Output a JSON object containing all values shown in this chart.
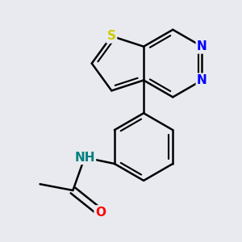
{
  "bg_color": "#e8eaf0",
  "bond_color": "#000000",
  "bond_width": 1.8,
  "atom_colors": {
    "N": "#0000ff",
    "S": "#cccc00",
    "O": "#ff0000",
    "NH": "#008080",
    "C": "#000000"
  },
  "font_size": 11,
  "fig_size": [
    3.0,
    3.0
  ],
  "dpi": 100
}
